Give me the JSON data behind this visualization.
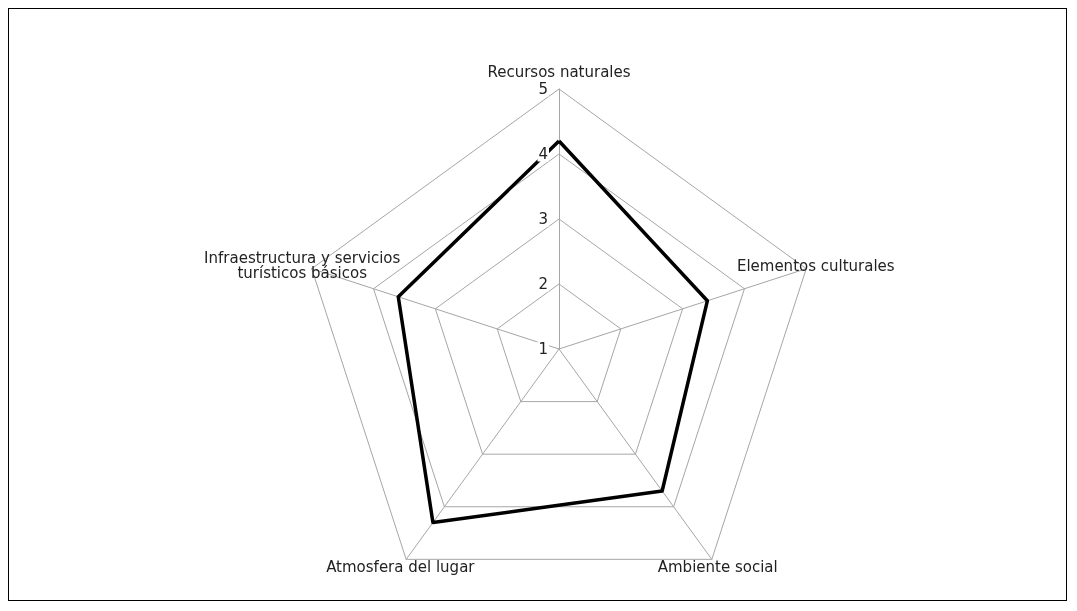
{
  "chart_data": {
    "type": "radar",
    "categories": [
      "Recursos naturales",
      "Elementos culturales",
      "Ambiente social",
      "Atmosfera del lugar",
      "Infraestructura y servicios turísticos básicos"
    ],
    "series": [
      {
        "color": "#000000",
        "values": [
          4.2,
          3.4,
          3.7,
          4.3,
          3.6
        ]
      }
    ],
    "ylim": [
      1,
      5
    ],
    "yticks": [
      1,
      2,
      3,
      4,
      5
    ],
    "marker": "none",
    "line_style": "solid"
  }
}
